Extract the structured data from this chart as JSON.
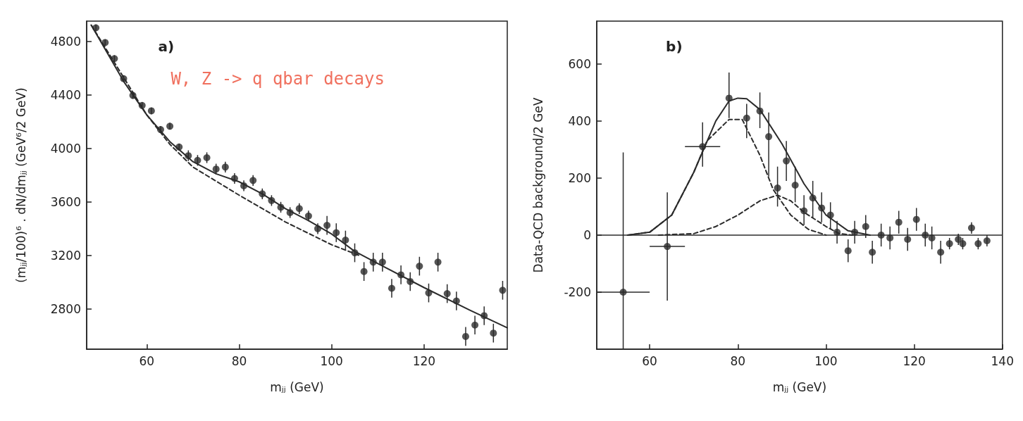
{
  "chart_data": [
    {
      "type": "scatter",
      "xlabel": "mⱼⱼ (GeV)",
      "ylabel": "(mⱼⱼ/100)⁶ . dN/dmⱼⱼ (GeV⁶/2 GeV)",
      "annotations": [
        "a)",
        "W, Z -> q qbar decays"
      ],
      "xlim": [
        47,
        138
      ],
      "xticks": [
        60,
        80,
        100,
        120
      ],
      "ylim": [
        2500,
        4950
      ],
      "yticks": [
        2800,
        3200,
        3600,
        4000,
        4400,
        4800
      ],
      "series": [
        {
          "marker": "circle",
          "color": "#2b2b2b",
          "x": [
            49,
            51,
            53,
            55,
            57,
            59,
            61,
            63,
            65,
            67,
            69,
            71,
            73,
            75,
            77,
            79,
            81,
            83,
            85,
            87,
            89,
            91,
            93,
            95,
            97,
            99,
            101,
            103,
            105,
            107,
            109,
            111,
            113,
            115,
            117,
            119,
            121,
            123,
            125,
            127,
            129,
            131,
            133,
            135,
            137
          ],
          "values": [
            4900,
            4790,
            4670,
            4520,
            4395,
            4320,
            4280,
            4140,
            4165,
            4010,
            3945,
            3910,
            3930,
            3845,
            3860,
            3775,
            3720,
            3760,
            3660,
            3610,
            3560,
            3520,
            3550,
            3495,
            3400,
            3425,
            3370,
            3315,
            3220,
            3080,
            3150,
            3150,
            2955,
            3055,
            3005,
            3120,
            2920,
            3150,
            2915,
            2860,
            2595,
            2680,
            2750,
            2620,
            2940
          ],
          "errors": [
            25,
            25,
            25,
            25,
            25,
            25,
            25,
            25,
            25,
            25,
            40,
            40,
            40,
            40,
            40,
            40,
            40,
            40,
            40,
            40,
            40,
            40,
            40,
            40,
            40,
            70,
            70,
            70,
            70,
            70,
            70,
            70,
            70,
            70,
            70,
            70,
            70,
            70,
            70,
            70,
            70,
            70,
            70,
            70,
            70
          ]
        },
        {
          "type": "line",
          "color": "#2b2b2b",
          "line_style": "solid",
          "x": [
            48,
            55,
            60,
            65,
            70,
            75,
            80,
            85,
            90,
            95,
            100,
            105,
            110,
            120,
            130,
            138
          ],
          "values": [
            4920,
            4500,
            4250,
            4050,
            3900,
            3810,
            3750,
            3660,
            3550,
            3460,
            3360,
            3230,
            3140,
            2960,
            2790,
            2660
          ]
        },
        {
          "type": "line",
          "color": "#2b2b2b",
          "line_style": "dashed",
          "x": [
            48,
            60,
            65,
            70,
            80,
            90,
            100,
            106
          ],
          "values": [
            4920,
            4250,
            4030,
            3860,
            3650,
            3450,
            3280,
            3200
          ]
        }
      ]
    },
    {
      "type": "scatter",
      "xlabel": "mⱼⱼ (GeV)",
      "ylabel": "Data-QCD background/2 GeV",
      "annotations": [
        "b)"
      ],
      "xlim": [
        48,
        140
      ],
      "xticks": [
        60,
        80,
        100,
        120,
        140
      ],
      "ylim": [
        -400,
        750
      ],
      "yticks": [
        -200,
        0,
        200,
        400,
        600
      ],
      "ref_lines": [
        {
          "axis": "y",
          "value": 0,
          "label": null,
          "color": "#2b2b2b",
          "line_style": "solid"
        }
      ],
      "series": [
        {
          "marker": "circle",
          "color": "#2b2b2b",
          "x": [
            54,
            64,
            72,
            78,
            82,
            85,
            87,
            89,
            91,
            93,
            95,
            97,
            99,
            101,
            102.5,
            105,
            106.5,
            109,
            110.5,
            112.5,
            114.5,
            116.5,
            118.5,
            120.5,
            122.5,
            124,
            126,
            128,
            130,
            131,
            133,
            134.5,
            136.5
          ],
          "values": [
            -200,
            -40,
            310,
            480,
            410,
            435,
            345,
            165,
            260,
            175,
            85,
            130,
            95,
            70,
            10,
            -55,
            10,
            30,
            -60,
            0,
            -10,
            45,
            -15,
            55,
            0,
            -10,
            -60,
            -30,
            -15,
            -30,
            25,
            -30,
            -20
          ],
          "errors": [
            [
              -400,
              290
            ],
            [
              -230,
              150
            ],
            [
              240,
              395
            ],
            [
              410,
              570
            ],
            [
              340,
              460
            ],
            [
              375,
              500
            ],
            [
              205,
              430
            ],
            [
              100,
              240
            ],
            [
              190,
              330
            ],
            [
              115,
              240
            ],
            [
              35,
              140
            ],
            [
              60,
              190
            ],
            [
              45,
              150
            ],
            [
              20,
              115
            ],
            40,
            40,
            40,
            40,
            40,
            40,
            40,
            40,
            40,
            40,
            40,
            40,
            40,
            20,
            20,
            20,
            20,
            20,
            20
          ],
          "xerrors": [
            [
              48,
              60
            ],
            [
              60,
              68
            ],
            [
              68,
              76
            ],
            null,
            null,
            null,
            null,
            null,
            null,
            null,
            null,
            null,
            null,
            null,
            null,
            null,
            null,
            null,
            null,
            null,
            null,
            null,
            null,
            null,
            null,
            null,
            null,
            null,
            null,
            null,
            null,
            null,
            null
          ]
        },
        {
          "type": "line",
          "color": "#2b2b2b",
          "line_style": "solid",
          "x": [
            55,
            60,
            65,
            70,
            75,
            78,
            80,
            82,
            85,
            90,
            95,
            100,
            105,
            110
          ],
          "values": [
            0,
            10,
            70,
            220,
            400,
            470,
            480,
            478,
            440,
            320,
            180,
            70,
            15,
            0
          ]
        },
        {
          "type": "line",
          "color": "#2b2b2b",
          "line_style": "dashed",
          "x": [
            55,
            60,
            65,
            70,
            73,
            78,
            81,
            85,
            88,
            92,
            96,
            100
          ],
          "values": [
            0,
            10,
            70,
            220,
            330,
            405,
            405,
            280,
            160,
            70,
            20,
            0
          ]
        },
        {
          "type": "line",
          "color": "#2b2b2b",
          "line_style": "dashed",
          "x": [
            62,
            70,
            75,
            80,
            85,
            89,
            92,
            95,
            100,
            103,
            106
          ],
          "values": [
            0,
            5,
            30,
            70,
            120,
            140,
            120,
            80,
            30,
            5,
            0
          ]
        }
      ]
    }
  ]
}
